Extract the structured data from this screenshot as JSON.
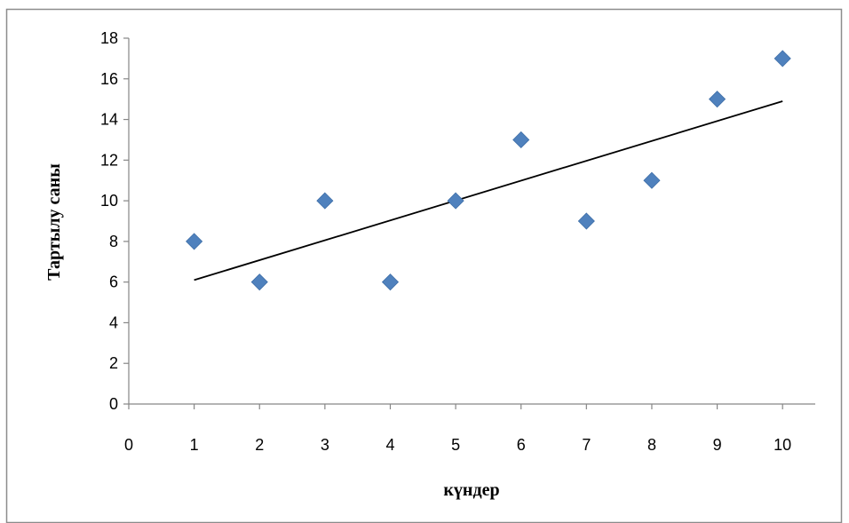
{
  "chart_data": {
    "type": "scatter",
    "title": "",
    "xlabel": "күндер",
    "ylabel": "Тартылу саны",
    "xlim": [
      0,
      10.5
    ],
    "ylim": [
      0,
      18
    ],
    "xticks": [
      0,
      1,
      2,
      3,
      4,
      5,
      6,
      7,
      8,
      9,
      10
    ],
    "yticks": [
      0,
      2,
      4,
      6,
      8,
      10,
      12,
      14,
      16,
      18
    ],
    "grid": false,
    "legend": "none",
    "series": [
      {
        "x": [
          1,
          2,
          3,
          4,
          5,
          6,
          7,
          8,
          9,
          10
        ],
        "y": [
          8,
          6,
          10,
          6,
          10,
          13,
          9,
          11,
          15,
          17
        ],
        "marker": "diamond",
        "color": "#4F81BD"
      }
    ],
    "trendline": {
      "type": "linear",
      "x": [
        1,
        10
      ],
      "y": [
        6.1,
        14.9
      ],
      "color": "#000000"
    }
  }
}
